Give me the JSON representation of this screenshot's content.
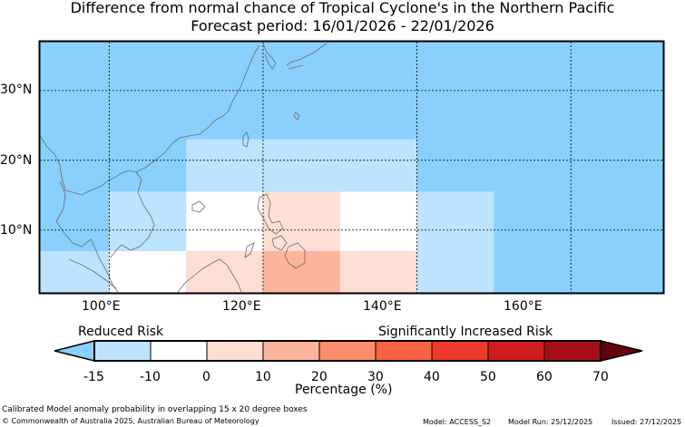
{
  "title": "Difference from normal chance of Tropical Cyclone's in the Northern Pacific",
  "subtitle": "Forecast period: 16/01/2026 - 22/01/2026",
  "map": {
    "lon_range": [
      91,
      172
    ],
    "lat_range": [
      1,
      37
    ],
    "x_ticks": [
      "100°E",
      "120°E",
      "140°E",
      "160°E"
    ],
    "y_ticks": [
      "30°N",
      "20°N",
      "10°N"
    ],
    "base_color": "#8ad0ff",
    "cells": [
      {
        "lon": [
          91,
          100
        ],
        "lat": [
          1,
          7
        ],
        "color": "#bde3ff"
      },
      {
        "lon": [
          100,
          110
        ],
        "lat": [
          1,
          7
        ],
        "color": "#ffffff"
      },
      {
        "lon": [
          110,
          120
        ],
        "lat": [
          1,
          7
        ],
        "color": "#ffdfd3"
      },
      {
        "lon": [
          120,
          130
        ],
        "lat": [
          1,
          7
        ],
        "color": "#fcb49c"
      },
      {
        "lon": [
          130,
          140
        ],
        "lat": [
          1,
          7
        ],
        "color": "#ffdfd3"
      },
      {
        "lon": [
          140,
          150
        ],
        "lat": [
          1,
          7
        ],
        "color": "#bde3ff"
      },
      {
        "lon": [
          100,
          110
        ],
        "lat": [
          7,
          15.5
        ],
        "color": "#bde3ff"
      },
      {
        "lon": [
          110,
          120
        ],
        "lat": [
          7,
          15.5
        ],
        "color": "#ffffff"
      },
      {
        "lon": [
          120,
          130
        ],
        "lat": [
          7,
          15.5
        ],
        "color": "#ffdfd3"
      },
      {
        "lon": [
          130,
          140
        ],
        "lat": [
          7,
          15.5
        ],
        "color": "#ffffff"
      },
      {
        "lon": [
          140,
          150
        ],
        "lat": [
          7,
          15.5
        ],
        "color": "#bde3ff"
      },
      {
        "lon": [
          110,
          140
        ],
        "lat": [
          15.5,
          23
        ],
        "color": "#bde3ff"
      }
    ]
  },
  "colorbar": {
    "left_label": "Reduced Risk",
    "right_label": "Significantly Increased Risk",
    "ticks": [
      "-15",
      "-10",
      "0",
      "10",
      "20",
      "30",
      "40",
      "50",
      "60",
      "70"
    ],
    "under_color": "#8ad0ff",
    "colors": [
      "#bde3ff",
      "#ffffff",
      "#ffdfd3",
      "#fcb49c",
      "#fb8c6c",
      "#f86344",
      "#ee3a2a",
      "#cf1c1e",
      "#a50f15"
    ],
    "over_color": "#67000d",
    "xlabel": "Percentage (%)"
  },
  "footer": {
    "caption": "Calibrated Model anomaly probability in overlapping 15 x 20 degree boxes",
    "copyright": "© Commonwealth of Australia 2025, Australian Bureau of Meteorology",
    "model": "Model: ACCESS_S2",
    "run": "Model Run: 25/12/2025",
    "issued": "Issued: 27/12/2025"
  }
}
